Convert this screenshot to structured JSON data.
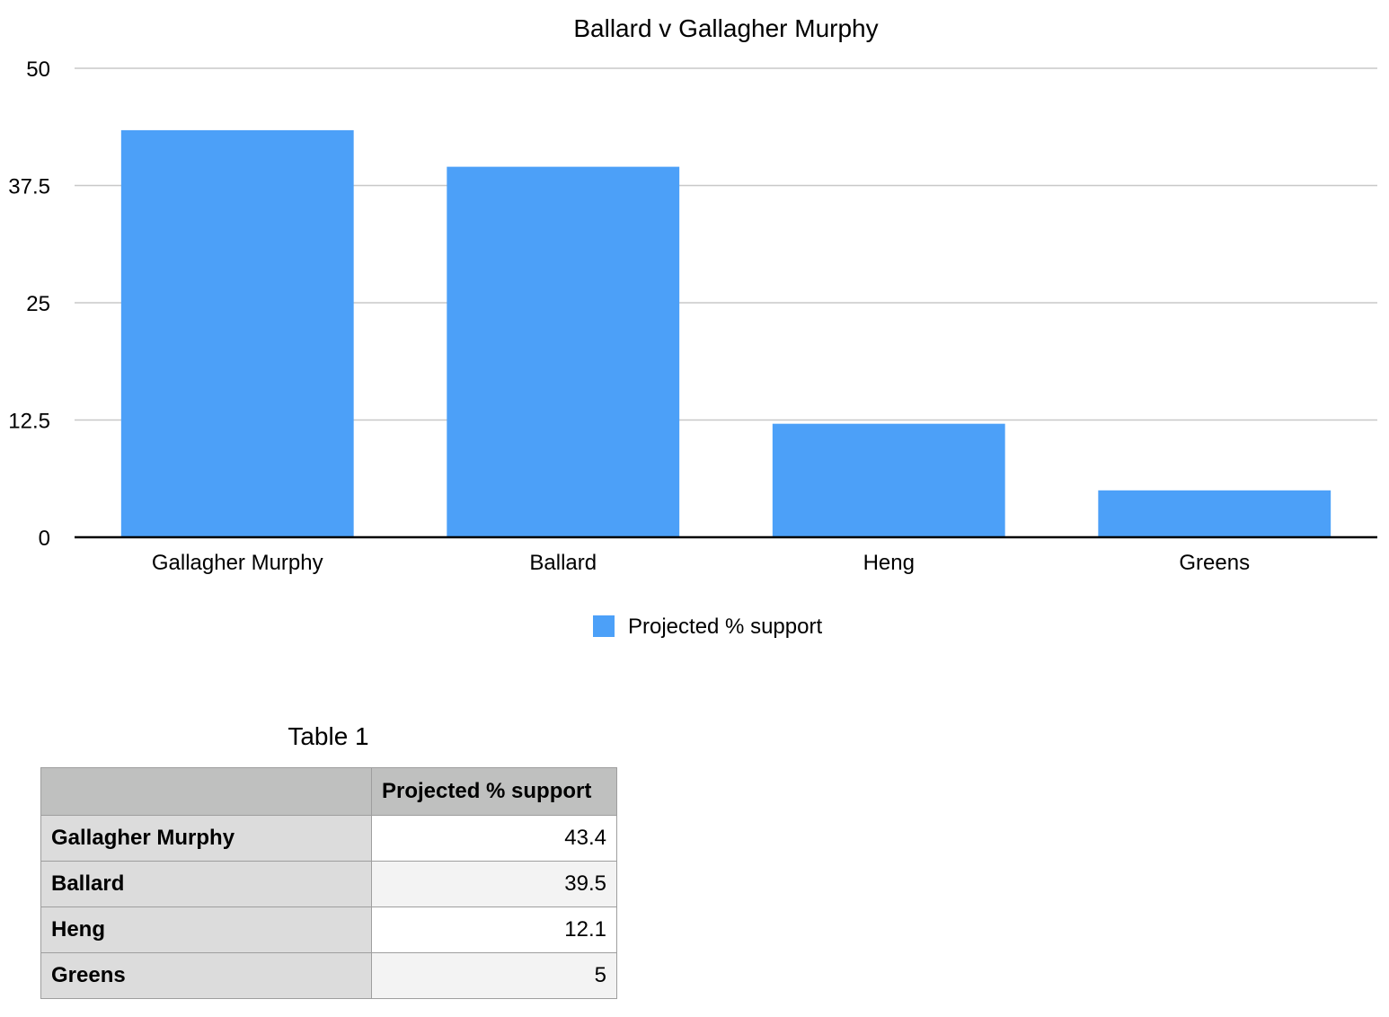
{
  "chart_data": {
    "type": "bar",
    "title": "Ballard v Gallagher Murphy",
    "categories": [
      "Gallagher Murphy",
      "Ballard",
      "Heng",
      "Greens"
    ],
    "series": [
      {
        "name": "Projected % support",
        "values": [
          43.4,
          39.5,
          12.1,
          5
        ]
      }
    ],
    "ylim": [
      0,
      50
    ],
    "yticks": [
      "0",
      "12.5",
      "25",
      "37.5",
      "50"
    ],
    "grid": true,
    "legend": "bottom-center",
    "colors": {
      "bar": "#4ca0f8",
      "grid": "#c8c8c8",
      "axis": "#000000"
    }
  },
  "table": {
    "title": "Table 1",
    "header": [
      "",
      "Projected % support"
    ],
    "rows": [
      {
        "label": "Gallagher Murphy",
        "value": "43.4"
      },
      {
        "label": "Ballard",
        "value": "39.5"
      },
      {
        "label": "Heng",
        "value": "12.1"
      },
      {
        "label": "Greens",
        "value": "5"
      }
    ]
  }
}
